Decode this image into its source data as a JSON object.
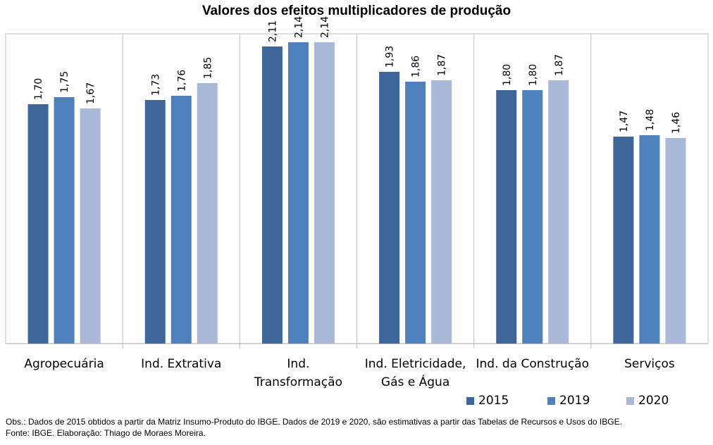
{
  "chart_data": {
    "type": "bar",
    "title": "Valores dos efeitos multiplicadores de produção",
    "categories": [
      [
        "Agropecuária"
      ],
      [
        "Ind. Extrativa"
      ],
      [
        "Ind.",
        "Transformação"
      ],
      [
        "Ind. Eletricidade,",
        "Gás e Água"
      ],
      [
        "Ind. da Construção"
      ],
      [
        "Serviços"
      ]
    ],
    "series": [
      {
        "name": "2015",
        "color": "#3f6699",
        "values": [
          1.7,
          1.73,
          2.11,
          1.93,
          1.8,
          1.47
        ],
        "labels": [
          "1,70",
          "1,73",
          "2,11",
          "1,93",
          "1,80",
          "1,47"
        ]
      },
      {
        "name": "2019",
        "color": "#4d80bc",
        "values": [
          1.75,
          1.76,
          2.14,
          1.86,
          1.8,
          1.48
        ],
        "labels": [
          "1,75",
          "1,76",
          "2,14",
          "1,86",
          "1,80",
          "1,48"
        ]
      },
      {
        "name": "2020",
        "color": "#a9b9d7",
        "values": [
          1.67,
          1.85,
          2.14,
          1.87,
          1.87,
          1.46
        ],
        "labels": [
          "1,67",
          "1,85",
          "2,14",
          "1,87",
          "1,87",
          "1,46"
        ]
      }
    ],
    "ylim": [
      0,
      2.2
    ],
    "grid": false,
    "legend_position": "bottom-right",
    "xlabel": "",
    "ylabel": ""
  },
  "footnotes": {
    "obs": "Obs.: Dados de 2015  obtidos a partir da Matriz Insumo-Produto do IBGE. Dados de 2019  e 2020,  são estimativas a partir das Tabelas de Recursos e Usos do IBGE.",
    "source": "Fonte: IBGE. Elaboração: Thiago de Moraes Moreira."
  }
}
